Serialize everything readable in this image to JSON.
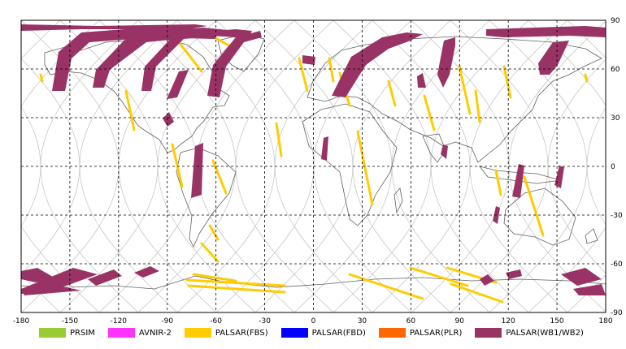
{
  "map": {
    "x_ticks": [
      "-180",
      "-150",
      "-120",
      "-90",
      "-60",
      "-30",
      "0",
      "30",
      "60",
      "90",
      "120",
      "150",
      "180"
    ],
    "y_ticks": [
      "90",
      "60",
      "30",
      "0",
      "-30",
      "-60",
      "-90"
    ],
    "lon_range": [
      -180,
      180
    ],
    "lat_range": [
      -90,
      90
    ],
    "grid": "dashed",
    "colors": {
      "coast": "#606060",
      "orbit": "#c0c0c0",
      "grid": "#000000"
    }
  },
  "legend": [
    {
      "label": "PRSIM",
      "color": "#99cc33"
    },
    {
      "label": "AVNIR-2",
      "color": "#ff33ff"
    },
    {
      "label": "PALSAR(FBS)",
      "color": "#ffcc00"
    },
    {
      "label": "PALSAR(FBD)",
      "color": "#0000ff"
    },
    {
      "label": "PALSAR(PLR)",
      "color": "#ff6600"
    },
    {
      "label": "PALSAR(WB1/WB2)",
      "color": "#993366"
    }
  ]
}
